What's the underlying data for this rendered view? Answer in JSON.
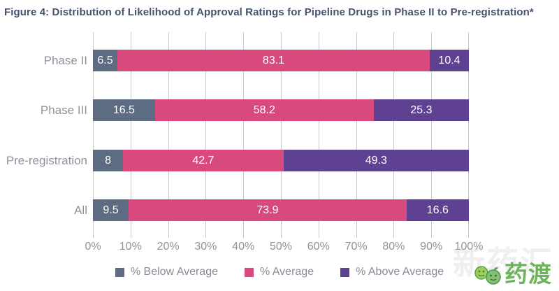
{
  "title": "Figure 4: Distribution of Likelihood of Approval Ratings for Pipeline Drugs in Phase II to Pre-registration*",
  "chart_data": {
    "type": "bar",
    "orientation": "horizontal",
    "stacked": true,
    "title": "Figure 4: Distribution of Likelihood of Approval Ratings for Pipeline Drugs in Phase II to Pre-registration*",
    "categories": [
      "Phase II",
      "Phase III",
      "Pre-registration",
      "All"
    ],
    "series": [
      {
        "name": "% Below Average",
        "color": "#5d6b83",
        "values": [
          6.5,
          16.5,
          8,
          9.5
        ]
      },
      {
        "name": "% Average",
        "color": "#d8497d",
        "values": [
          83.1,
          58.2,
          42.7,
          73.9
        ]
      },
      {
        "name": "% Above Average",
        "color": "#5f4191",
        "values": [
          10.4,
          25.3,
          49.3,
          16.6
        ]
      }
    ],
    "xlim": [
      0,
      100
    ],
    "x_ticks": [
      "0%",
      "10%",
      "20%",
      "30%",
      "40%",
      "50%",
      "60%",
      "70%",
      "80%",
      "90%",
      "100%"
    ],
    "grid": "vertical",
    "gridline_color": "#c6c8cb",
    "legend_position": "bottom",
    "value_label_color": "#ffffff"
  },
  "colors": {
    "title": "#44546e",
    "axis_text": "#8e939d",
    "legend_text": "#878c97",
    "watermark_green": "#6db35a"
  },
  "watermark": {
    "background_text": "新药汇",
    "logo_text": "药渡",
    "logo_icon": "two-green-cartoon-faces"
  }
}
